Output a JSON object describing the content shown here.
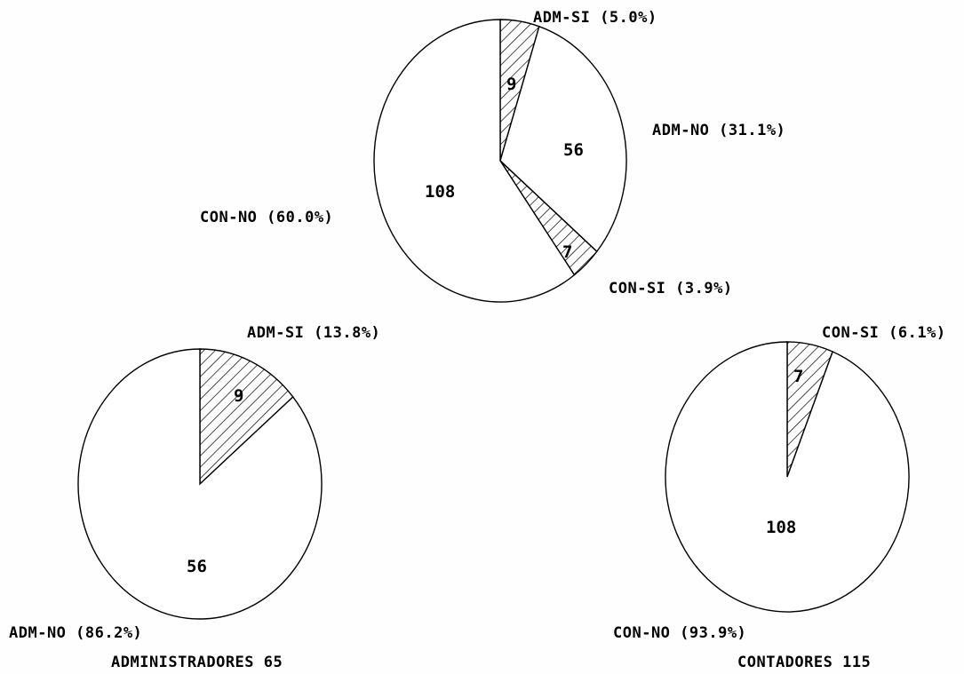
{
  "chart_data": [
    {
      "type": "pie",
      "slices": [
        {
          "label": "ADM-SI (5.0%)",
          "value": 9,
          "value_label": "9",
          "hatched": true
        },
        {
          "label": "ADM-NO (31.1%)",
          "value": 56,
          "value_label": "56",
          "hatched": false
        },
        {
          "label": "CON-SI (3.9%)",
          "value": 7,
          "value_label": "7",
          "hatched": true
        },
        {
          "label": "CON-NO (60.0%)",
          "value": 108,
          "value_label": "108",
          "hatched": false
        }
      ],
      "caption": ""
    },
    {
      "type": "pie",
      "slices": [
        {
          "label": "ADM-SI (13.8%)",
          "value": 9,
          "value_label": "9",
          "hatched": true
        },
        {
          "label": "ADM-NO (86.2%)",
          "value": 56,
          "value_label": "56",
          "hatched": false
        }
      ],
      "caption": "ADMINISTRADORES 65"
    },
    {
      "type": "pie",
      "slices": [
        {
          "label": "CON-SI (6.1%)",
          "value": 7,
          "value_label": "7",
          "hatched": true
        },
        {
          "label": "CON-NO (93.9%)",
          "value": 108,
          "value_label": "108",
          "hatched": false
        }
      ],
      "caption": "CONTADORES 115"
    }
  ],
  "colors": {
    "ink": "#000000",
    "background": "#ffffff"
  }
}
